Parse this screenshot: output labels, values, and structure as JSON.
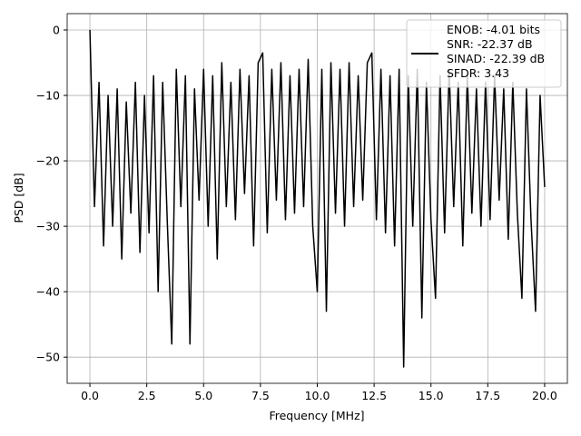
{
  "chart_data": {
    "type": "line",
    "xlabel": "Frequency [MHz]",
    "ylabel": "PSD [dB]",
    "x": [
      0,
      0.2,
      0.4,
      0.6,
      0.8,
      1.0,
      1.2,
      1.4,
      1.6,
      1.8,
      2.0,
      2.2,
      2.4,
      2.6,
      2.8,
      3.0,
      3.2,
      3.4,
      3.6,
      3.8,
      4.0,
      4.2,
      4.4,
      4.6,
      4.8,
      5.0,
      5.2,
      5.4,
      5.6,
      5.8,
      6.0,
      6.2,
      6.4,
      6.6,
      6.8,
      7.0,
      7.2,
      7.4,
      7.6,
      7.8,
      8.0,
      8.2,
      8.4,
      8.6,
      8.8,
      9.0,
      9.2,
      9.4,
      9.6,
      9.8,
      10.0,
      10.2,
      10.4,
      10.6,
      10.8,
      11.0,
      11.2,
      11.4,
      11.6,
      11.8,
      12.0,
      12.2,
      12.4,
      12.6,
      12.8,
      13.0,
      13.2,
      13.4,
      13.6,
      13.8,
      14.0,
      14.2,
      14.4,
      14.6,
      14.8,
      15.0,
      15.2,
      15.4,
      15.6,
      15.8,
      16.0,
      16.2,
      16.4,
      16.6,
      16.8,
      17.0,
      17.2,
      17.4,
      17.6,
      17.8,
      18.0,
      18.2,
      18.4,
      18.6,
      18.8,
      19.0,
      19.2,
      19.4,
      19.6,
      19.8,
      20.0
    ],
    "series": [
      {
        "name": "ENOB: -4.01 bits\nSNR: -22.37 dB\nSINAD: -22.39 dB\nSFDR: 3.43",
        "color": "#000000",
        "values": [
          0,
          -27,
          -8,
          -33,
          -10,
          -30,
          -9,
          -35,
          -11,
          -28,
          -8,
          -34,
          -10,
          -31,
          -7,
          -40,
          -8,
          -29,
          -48,
          -6,
          -27,
          -7,
          -48,
          -9,
          -26,
          -6,
          -30,
          -7,
          -35,
          -5,
          -27,
          -8,
          -29,
          -6,
          -25,
          -7,
          -33,
          -5,
          -3.5,
          -31,
          -6,
          -26,
          -5,
          -29,
          -7,
          -28,
          -6,
          -27,
          -4.5,
          -30,
          -40,
          -6,
          -43,
          -5,
          -28,
          -6,
          -30,
          -5,
          -27,
          -7,
          -26,
          -5,
          -3.5,
          -29,
          -6,
          -31,
          -7,
          -33,
          -6,
          -51.5,
          -7,
          -30,
          -6,
          -44,
          -8,
          -29,
          -41,
          -7,
          -31,
          -6,
          -27,
          -8,
          -33,
          -7,
          -28,
          -9,
          -30,
          -8,
          -29,
          -7,
          -26,
          -9,
          -32,
          -8,
          -28,
          -41,
          -9,
          -29,
          -43,
          -10,
          -24
        ]
      }
    ],
    "xlim": [
      -1,
      21
    ],
    "ylim": [
      -54,
      2.5
    ],
    "xticks": [
      {
        "value": 0,
        "label": "0.0"
      },
      2.5,
      {
        "value": 5,
        "label": "5.0"
      },
      7.5,
      {
        "value": 10,
        "label": "10.0"
      },
      12.5,
      {
        "value": 15,
        "label": "15.0"
      },
      17.5,
      {
        "value": 20,
        "label": "20.0"
      }
    ],
    "yticks": [
      {
        "value": -50,
        "label": "−50"
      },
      {
        "value": -40,
        "label": "−40"
      },
      {
        "value": -30,
        "label": "−30"
      },
      {
        "value": -20,
        "label": "−20"
      },
      {
        "value": -10,
        "label": "−10"
      },
      0
    ],
    "grid": true,
    "legend": "upper right"
  }
}
